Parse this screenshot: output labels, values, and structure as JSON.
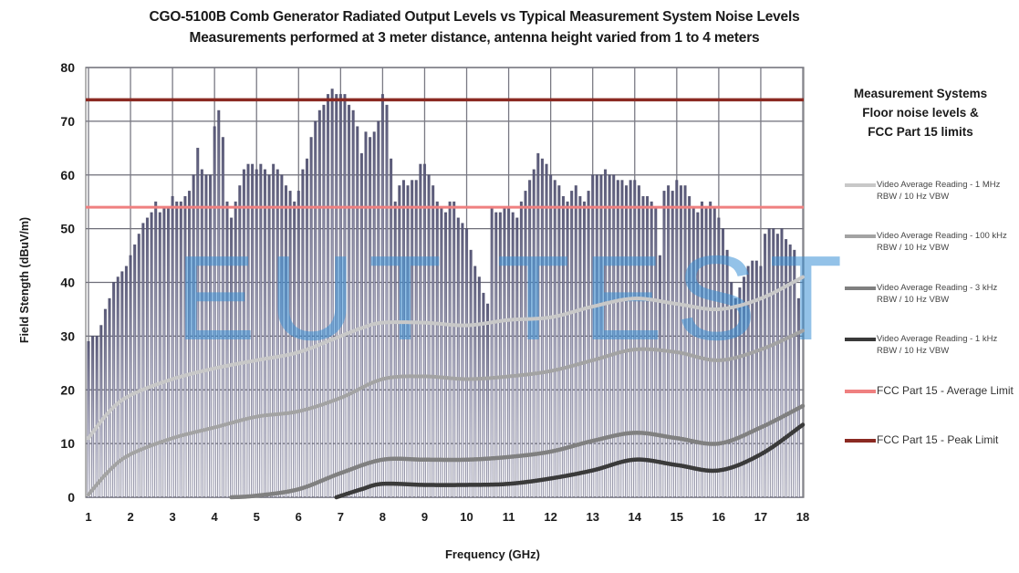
{
  "chart_data": {
    "type": "bar",
    "title": "CGO-5100B Comb Generator Radiated Output Levels vs Typical Measurement System Noise Levels",
    "subtitle": "Measurements performed at 3 meter distance, antenna height varied from 1 to 4 meters",
    "xlabel": "Frequency (GHz)",
    "ylabel": "Field Stength (dBuV/m)",
    "xlim": [
      1,
      18
    ],
    "ylim": [
      0,
      80
    ],
    "x_ticks": [
      "1",
      "2",
      "3",
      "4",
      "5",
      "6",
      "7",
      "8",
      "9",
      "10",
      "11",
      "12",
      "13",
      "14",
      "15",
      "16",
      "17",
      "18"
    ],
    "y_ticks": [
      "0",
      "10",
      "20",
      "30",
      "40",
      "50",
      "60",
      "70",
      "80"
    ],
    "grid": true,
    "legend_position": "right",
    "legend_title": "Measurement Systems Floor noise levels & FCC Part 15 limits",
    "bars": {
      "name": "CGO-5100B comb output",
      "x_start": 1.0,
      "x_step": 0.1,
      "values": [
        29,
        30,
        30,
        32,
        35,
        37,
        40,
        41,
        42,
        43,
        45,
        47,
        49,
        51,
        52,
        53,
        55,
        53,
        54,
        54,
        56,
        55,
        55,
        56,
        57,
        60,
        65,
        61,
        60,
        60,
        69,
        72,
        67,
        55,
        52,
        55,
        58,
        61,
        62,
        62,
        61,
        62,
        61,
        60,
        62,
        61,
        60,
        58,
        57,
        55,
        57,
        61,
        63,
        67,
        70,
        72,
        73,
        75,
        76,
        75,
        75,
        75,
        73,
        72,
        69,
        64,
        68,
        67,
        68,
        70,
        75,
        73,
        63,
        55,
        58,
        59,
        58,
        59,
        59,
        62,
        62,
        60,
        58,
        55,
        54,
        53,
        55,
        55,
        52,
        51,
        50,
        46,
        43,
        41,
        38,
        36,
        54,
        53,
        53,
        54,
        54,
        53,
        52,
        55,
        57,
        59,
        61,
        64,
        63,
        62,
        60,
        59,
        58,
        56,
        55,
        57,
        58,
        56,
        55,
        57,
        60,
        60,
        60,
        61,
        60,
        60,
        59,
        59,
        58,
        59,
        59,
        58,
        56,
        56,
        55,
        54,
        45,
        57,
        58,
        57,
        59,
        58,
        58,
        56,
        54,
        53,
        55,
        54,
        55,
        54,
        52,
        50,
        46,
        40,
        37,
        39,
        41,
        43,
        44,
        44,
        43,
        49,
        50,
        50,
        49,
        50,
        48,
        47,
        46,
        37
      ]
    },
    "series": [
      {
        "name": "Video Average Reading - 1 MHz RBW / 10 Hz VBW",
        "color": "#c8c8c8",
        "x": [
          1,
          1.5,
          2,
          3,
          4,
          5,
          6,
          7,
          7.5,
          8,
          9,
          10,
          11,
          12,
          13,
          14,
          15,
          16,
          17,
          18
        ],
        "values": [
          11,
          16,
          19,
          22,
          24,
          25.5,
          27,
          30,
          31.5,
          32.5,
          32.5,
          32,
          33,
          33.5,
          35.5,
          37,
          36,
          35,
          37,
          41
        ]
      },
      {
        "name": "Video Average Reading - 100 kHz RBW / 10 Hz VBW",
        "color": "#a3a3a3",
        "x": [
          1,
          1.5,
          2,
          3,
          4,
          5,
          6,
          7,
          8,
          9,
          10,
          11,
          12,
          13,
          14,
          15,
          16,
          17,
          18
        ],
        "values": [
          0.5,
          5,
          8,
          11,
          13,
          15,
          16,
          18.5,
          22,
          22.5,
          22,
          22.5,
          23.5,
          25.5,
          27.5,
          27,
          25.5,
          27.5,
          31
        ]
      },
      {
        "name": "Video Average Reading - 3 kHz RBW / 10 Hz VBW",
        "color": "#808080",
        "x": [
          4.4,
          5,
          6,
          7,
          8,
          9,
          10,
          11,
          12,
          13,
          14,
          15,
          16,
          17,
          18
        ],
        "values": [
          0,
          0.3,
          1.5,
          4.5,
          7,
          7,
          7,
          7.5,
          8.5,
          10.5,
          12,
          11,
          10,
          13,
          17
        ]
      },
      {
        "name": "Video Average Reading - 1 kHz RBW / 10 Hz VBW",
        "color": "#3a3a3a",
        "x": [
          6.9,
          7.5,
          8,
          9,
          10,
          11,
          12,
          13,
          14,
          15,
          16,
          17,
          18
        ],
        "values": [
          0,
          1.5,
          2.5,
          2.3,
          2.3,
          2.5,
          3.5,
          5,
          7,
          6,
          5,
          8,
          13.5
        ]
      },
      {
        "name": "FCC Part 15 - Average Limit",
        "color": "#ef8080",
        "x": [
          1,
          18
        ],
        "values": [
          54,
          54
        ]
      },
      {
        "name": "FCC Part 15 - Peak Limit",
        "color": "#8b2a22",
        "x": [
          1,
          18
        ],
        "values": [
          74,
          74
        ]
      }
    ],
    "watermark": "EUT TEST"
  },
  "header": {
    "title": "CGO-5100B Comb Generator Radiated Output Levels vs Typical Measurement System Noise Levels",
    "subtitle": "Measurements performed at 3 meter distance, antenna height varied from 1 to 4 meters"
  },
  "axes": {
    "xlabel": "Frequency (GHz)",
    "ylabel": "Field Stength (dBuV/m)"
  },
  "legend": {
    "title_lines": [
      "Measurement Systems",
      "Floor noise levels &",
      "FCC Part 15 limits"
    ],
    "items": [
      {
        "label": "Video Average Reading - 1 MHz RBW / 10 Hz VBW"
      },
      {
        "label": "Video Average Reading - 100 kHz RBW / 10 Hz VBW"
      },
      {
        "label": "Video Average Reading - 3 kHz RBW / 10 Hz VBW"
      },
      {
        "label": "Video Average Reading - 1 kHz RBW / 10 Hz VBW"
      },
      {
        "label": "FCC Part 15 - Average Limit"
      },
      {
        "label": "FCC Part 15 - Peak Limit"
      }
    ]
  }
}
